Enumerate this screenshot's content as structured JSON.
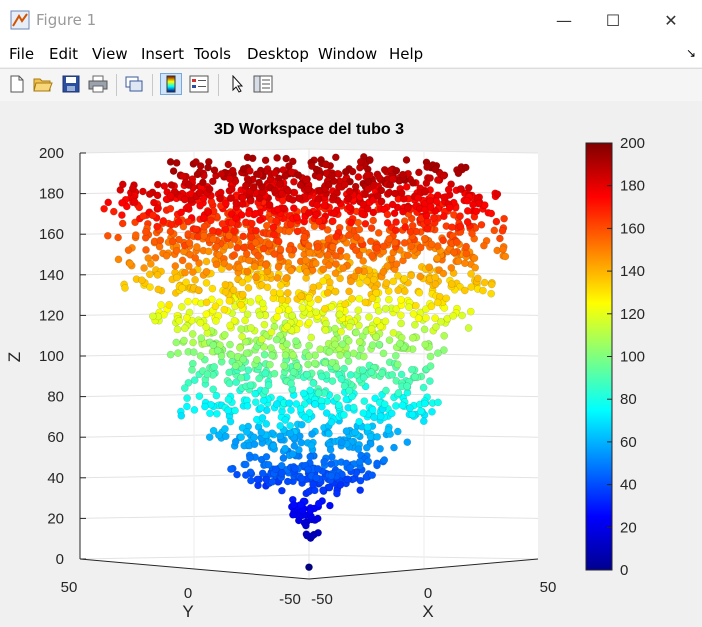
{
  "window": {
    "title": "Figure 1",
    "minimize_glyph": "—",
    "maximize_glyph": "☐",
    "close_glyph": "✕"
  },
  "menu": {
    "items": [
      "File",
      "Edit",
      "View",
      "Insert",
      "Tools",
      "Desktop",
      "Window",
      "Help"
    ],
    "dock_glyph": "↘"
  },
  "toolbar": {
    "buttons": [
      "new-figure-icon",
      "open-file-icon",
      "save-icon",
      "print-icon",
      "link-plot-icon",
      "colorbar-toggle-icon",
      "legend-toggle-icon",
      "pointer-icon",
      "property-inspector-icon"
    ],
    "active_button": "colorbar-toggle-icon"
  },
  "chart_data": {
    "type": "scatter",
    "title": "3D Workspace del tubo 3",
    "xlabel": "X",
    "ylabel": "Y",
    "zlabel": "Z",
    "zlim": [
      0,
      200
    ],
    "z_ticks": [
      "0",
      "20",
      "40",
      "60",
      "80",
      "100",
      "120",
      "140",
      "160",
      "180",
      "200"
    ],
    "y_ticks": [
      "50",
      "0",
      "-50"
    ],
    "x_ticks": [
      "-50",
      "0",
      "50"
    ],
    "grid": true,
    "colormap": "jet",
    "colorbar": {
      "range": [
        0,
        200
      ],
      "ticks": [
        "0",
        "20",
        "40",
        "60",
        "80",
        "100",
        "120",
        "140",
        "160",
        "180",
        "200"
      ]
    },
    "layers": [
      {
        "z": 0,
        "radius": 0
      },
      {
        "z": 15,
        "radius": 4
      },
      {
        "z": 25,
        "radius": 8
      },
      {
        "z": 39,
        "radius": 24
      },
      {
        "z": 45,
        "radius": 30
      },
      {
        "z": 60,
        "radius": 38
      },
      {
        "z": 75,
        "radius": 50
      },
      {
        "z": 90,
        "radius": 50
      },
      {
        "z": 105,
        "radius": 55
      },
      {
        "z": 120,
        "radius": 62
      },
      {
        "z": 135,
        "radius": 70
      },
      {
        "z": 150,
        "radius": 75
      },
      {
        "z": 160,
        "radius": 78
      },
      {
        "z": 172,
        "radius": 78
      },
      {
        "z": 180,
        "radius": 72
      },
      {
        "z": 188,
        "radius": 60
      }
    ]
  }
}
